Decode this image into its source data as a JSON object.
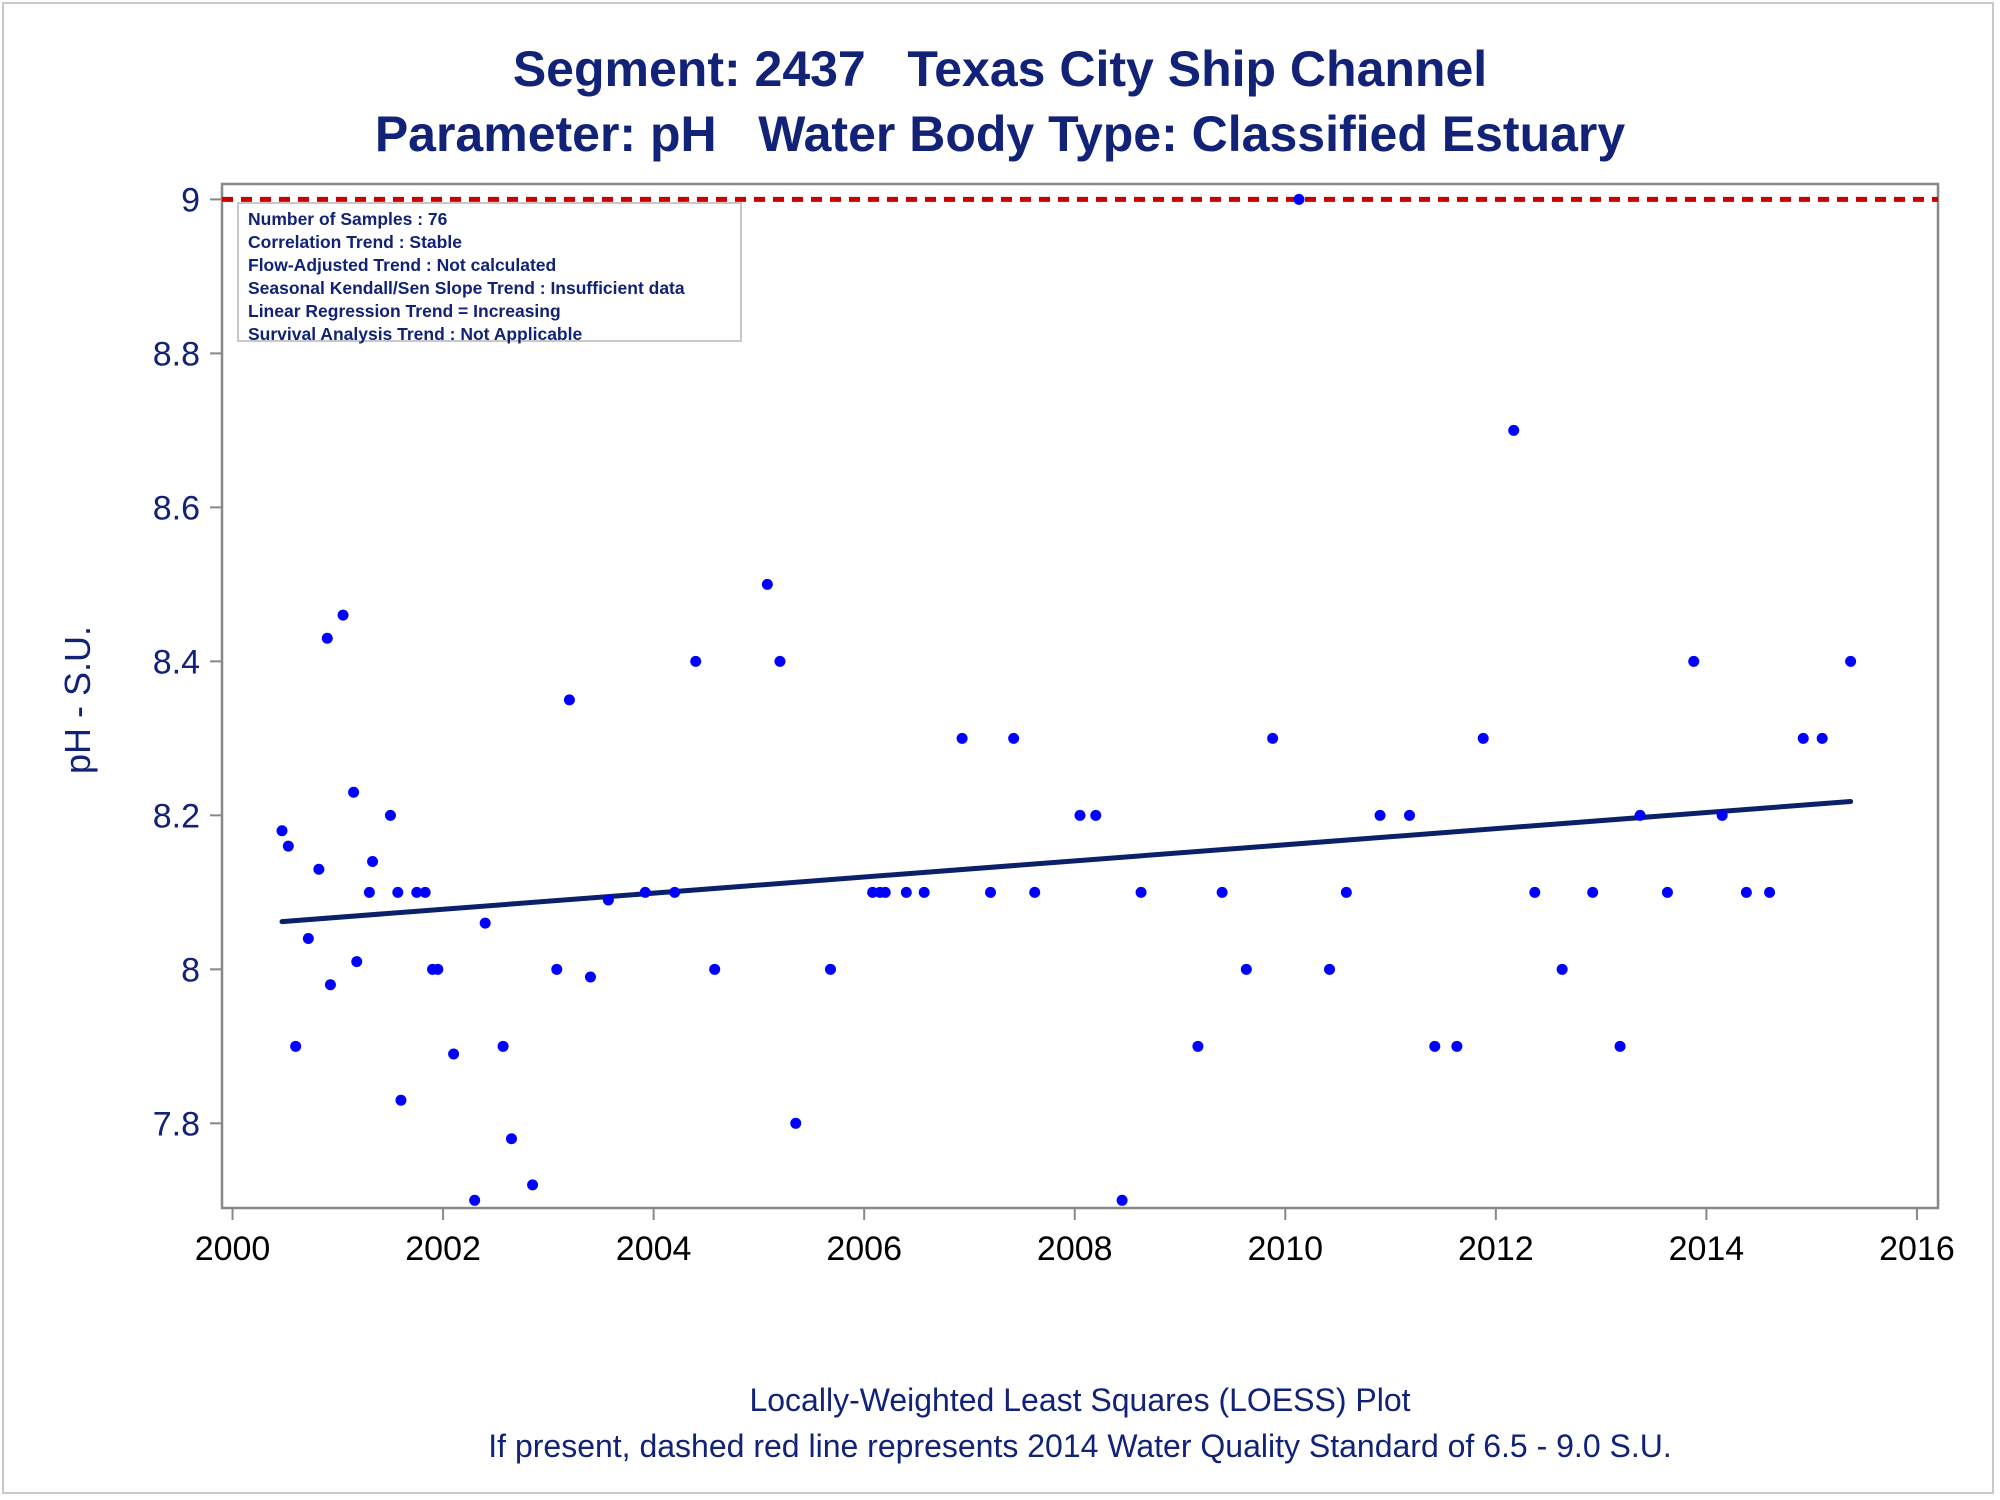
{
  "title_line1": "Segment: 2437   Texas City Ship Channel",
  "title_line2": "Parameter: pH   Water Body Type: Classified Estuary",
  "footer_line1": "Locally-Weighted Least Squares (LOESS) Plot",
  "footer_line2": "If present, dashed red line represents 2014 Water Quality Standard of 6.5 - 9.0 S.U.",
  "info_box": [
    "Number of Samples : 76",
    "Correlation Trend : Stable",
    "Flow-Adjusted Trend : Not calculated",
    "Seasonal Kendall/Sen Slope Trend : Insufficient data",
    "Linear Regression Trend = Increasing",
    "Survival Analysis Trend : Not Applicable"
  ],
  "colors": {
    "text": "#112277",
    "points": "#0000ff",
    "trend_line": "#0a2068",
    "standard_line": "#cc0000",
    "axes": "#888888"
  },
  "chart_data": {
    "type": "scatter",
    "xlabel": "",
    "ylabel": "pH - S.U.",
    "xlim": [
      1999.9,
      2016.2
    ],
    "ylim": [
      7.69,
      9.02
    ],
    "x_ticks": [
      2000,
      2002,
      2004,
      2006,
      2008,
      2010,
      2012,
      2014,
      2016
    ],
    "y_ticks": [
      7.8,
      8,
      8.2,
      8.4,
      8.6,
      8.8,
      9
    ],
    "grid": false,
    "standard_line": {
      "y": 9.0,
      "style": "dashed"
    },
    "trend_line": {
      "x": [
        2000.47,
        2015.37
      ],
      "y": [
        8.062,
        8.218
      ]
    },
    "points": [
      {
        "x": 2000.47,
        "y": 8.18
      },
      {
        "x": 2000.53,
        "y": 8.16
      },
      {
        "x": 2000.6,
        "y": 7.9
      },
      {
        "x": 2000.72,
        "y": 8.04
      },
      {
        "x": 2000.82,
        "y": 8.13
      },
      {
        "x": 2000.9,
        "y": 8.43
      },
      {
        "x": 2000.93,
        "y": 7.98
      },
      {
        "x": 2001.05,
        "y": 8.46
      },
      {
        "x": 2001.15,
        "y": 8.23
      },
      {
        "x": 2001.18,
        "y": 8.01
      },
      {
        "x": 2001.3,
        "y": 8.1
      },
      {
        "x": 2001.33,
        "y": 8.14
      },
      {
        "x": 2001.5,
        "y": 8.2
      },
      {
        "x": 2001.57,
        "y": 8.1
      },
      {
        "x": 2001.6,
        "y": 7.83
      },
      {
        "x": 2001.75,
        "y": 8.1
      },
      {
        "x": 2001.83,
        "y": 8.1
      },
      {
        "x": 2001.9,
        "y": 8.0
      },
      {
        "x": 2001.95,
        "y": 8.0
      },
      {
        "x": 2002.1,
        "y": 7.89
      },
      {
        "x": 2002.3,
        "y": 7.7
      },
      {
        "x": 2002.4,
        "y": 8.06
      },
      {
        "x": 2002.57,
        "y": 7.9
      },
      {
        "x": 2002.65,
        "y": 7.78
      },
      {
        "x": 2002.85,
        "y": 7.72
      },
      {
        "x": 2003.08,
        "y": 8.0
      },
      {
        "x": 2003.2,
        "y": 8.35
      },
      {
        "x": 2003.4,
        "y": 7.99
      },
      {
        "x": 2003.57,
        "y": 8.09
      },
      {
        "x": 2003.92,
        "y": 8.1
      },
      {
        "x": 2004.2,
        "y": 8.1
      },
      {
        "x": 2004.4,
        "y": 8.4
      },
      {
        "x": 2004.58,
        "y": 8.0
      },
      {
        "x": 2005.08,
        "y": 8.5
      },
      {
        "x": 2005.2,
        "y": 8.4
      },
      {
        "x": 2005.35,
        "y": 7.8
      },
      {
        "x": 2005.68,
        "y": 8.0
      },
      {
        "x": 2006.08,
        "y": 8.1
      },
      {
        "x": 2006.15,
        "y": 8.1
      },
      {
        "x": 2006.2,
        "y": 8.1
      },
      {
        "x": 2006.4,
        "y": 8.1
      },
      {
        "x": 2006.57,
        "y": 8.1
      },
      {
        "x": 2006.93,
        "y": 8.3
      },
      {
        "x": 2007.2,
        "y": 8.1
      },
      {
        "x": 2007.42,
        "y": 8.3
      },
      {
        "x": 2007.62,
        "y": 8.1
      },
      {
        "x": 2008.05,
        "y": 8.2
      },
      {
        "x": 2008.2,
        "y": 8.2
      },
      {
        "x": 2008.45,
        "y": 7.7
      },
      {
        "x": 2008.63,
        "y": 8.1
      },
      {
        "x": 2009.17,
        "y": 7.9
      },
      {
        "x": 2009.4,
        "y": 8.1
      },
      {
        "x": 2009.63,
        "y": 8.0
      },
      {
        "x": 2009.88,
        "y": 8.3
      },
      {
        "x": 2010.13,
        "y": 9.0
      },
      {
        "x": 2010.42,
        "y": 8.0
      },
      {
        "x": 2010.58,
        "y": 8.1
      },
      {
        "x": 2010.9,
        "y": 8.2
      },
      {
        "x": 2011.18,
        "y": 8.2
      },
      {
        "x": 2011.42,
        "y": 7.9
      },
      {
        "x": 2011.63,
        "y": 7.9
      },
      {
        "x": 2011.88,
        "y": 8.3
      },
      {
        "x": 2012.17,
        "y": 8.7
      },
      {
        "x": 2012.37,
        "y": 8.1
      },
      {
        "x": 2012.63,
        "y": 8.0
      },
      {
        "x": 2012.92,
        "y": 8.1
      },
      {
        "x": 2013.18,
        "y": 7.9
      },
      {
        "x": 2013.37,
        "y": 8.2
      },
      {
        "x": 2013.63,
        "y": 8.1
      },
      {
        "x": 2013.88,
        "y": 8.4
      },
      {
        "x": 2014.15,
        "y": 8.2
      },
      {
        "x": 2014.38,
        "y": 8.1
      },
      {
        "x": 2014.6,
        "y": 8.1
      },
      {
        "x": 2014.92,
        "y": 8.3
      },
      {
        "x": 2015.1,
        "y": 8.3
      },
      {
        "x": 2015.37,
        "y": 8.4
      }
    ]
  }
}
